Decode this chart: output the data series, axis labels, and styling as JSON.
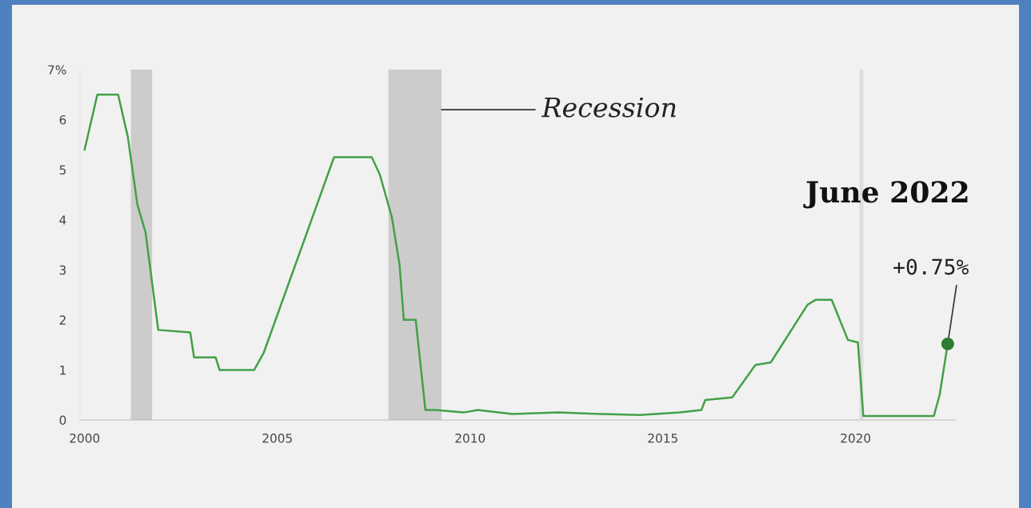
{
  "chart_data": {
    "type": "line",
    "series": [
      {
        "color": "#43a047",
        "x": [
          2000.0,
          2000.33,
          2000.87,
          2001.12,
          2001.37,
          2001.58,
          2001.91,
          2002.74,
          2002.84,
          2003.4,
          2003.5,
          2004.4,
          2004.65,
          2006.47,
          2007.45,
          2007.66,
          2007.97,
          2008.17,
          2008.28,
          2008.59,
          2008.84,
          2009.1,
          2009.83,
          2010.2,
          2011.1,
          2012.3,
          2013.36,
          2014.4,
          2015.44,
          2016.0,
          2016.1,
          2016.8,
          2017.4,
          2017.8,
          2018.75,
          2018.96,
          2019.38,
          2019.8,
          2020.06,
          2020.2,
          2022.03,
          2022.18,
          2022.39
        ],
        "values": [
          5.4,
          6.5,
          6.5,
          5.66,
          4.3,
          3.75,
          1.8,
          1.75,
          1.25,
          1.25,
          1.0,
          1.0,
          1.35,
          5.25,
          5.25,
          4.9,
          4.05,
          3.1,
          2.0,
          2.0,
          0.2,
          0.2,
          0.15,
          0.2,
          0.12,
          0.15,
          0.12,
          0.1,
          0.15,
          0.2,
          0.4,
          0.45,
          1.1,
          1.15,
          2.3,
          2.4,
          2.4,
          1.6,
          1.55,
          0.08,
          0.08,
          0.5,
          1.52
        ]
      },
      {
        "type": "scatter",
        "color": "#2e7d32",
        "x": [
          2022.39
        ],
        "values": [
          1.52
        ]
      }
    ],
    "xlim": [
      1999.88,
      2022.6
    ],
    "ylim": [
      0,
      7
    ],
    "xticks": [
      2000,
      2005,
      2010,
      2015,
      2020
    ],
    "yticks": [
      0,
      1,
      2,
      3,
      4,
      5,
      6,
      {
        "value": 7,
        "label": "7%"
      }
    ],
    "bands": [
      {
        "axis": "x",
        "from": 2001.2,
        "to": 2001.75,
        "color": "#cccccc"
      },
      {
        "axis": "x",
        "from": 2007.88,
        "to": 2009.26,
        "color": "#cccccc"
      },
      {
        "axis": "x",
        "from": 2020.1,
        "to": 2020.2,
        "color": "#dddddd"
      }
    ],
    "annotations": [
      {
        "text": "Recession",
        "x": 2009.26,
        "y": 6.2
      },
      "June 2022",
      {
        "text": "+0.75%",
        "x": 2022.39,
        "y": 1.52
      }
    ],
    "grid": false,
    "legend": false
  }
}
